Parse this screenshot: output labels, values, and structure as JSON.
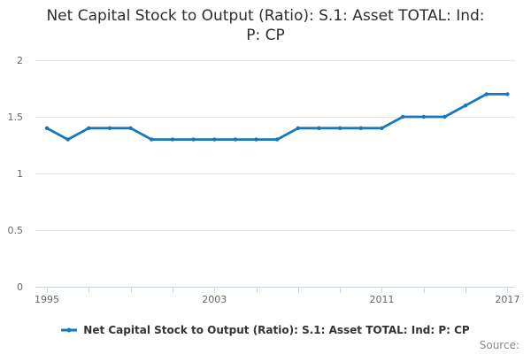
{
  "page": {
    "title_lines": [
      "Net Capital Stock to Output (Ratio): S.1: Asset TOTAL: Ind:",
      "P: CP"
    ]
  },
  "chart_data": {
    "type": "line",
    "title": "Net Capital Stock to Output (Ratio): S.1: Asset TOTAL: Ind: P: CP",
    "x": [
      1995,
      1996,
      1997,
      1998,
      1999,
      2000,
      2001,
      2002,
      2003,
      2004,
      2005,
      2006,
      2007,
      2008,
      2009,
      2010,
      2011,
      2012,
      2013,
      2014,
      2015,
      2016,
      2017
    ],
    "series": [
      {
        "name": "Net Capital Stock to Output (Ratio): S.1: Asset TOTAL: Ind: P: CP",
        "values": [
          1.4,
          1.3,
          1.4,
          1.4,
          1.4,
          1.3,
          1.3,
          1.3,
          1.3,
          1.3,
          1.3,
          1.3,
          1.4,
          1.4,
          1.4,
          1.4,
          1.4,
          1.5,
          1.5,
          1.5,
          1.6,
          1.7,
          1.7
        ]
      }
    ],
    "xlabel": "",
    "ylabel": "",
    "ylim": [
      0,
      2
    ],
    "yticks": [
      0,
      0.5,
      1,
      1.5,
      2
    ],
    "xtick_interval_years": 2,
    "xtick_labels": [
      1995,
      2003,
      2011,
      2017
    ],
    "grid": true,
    "legend_position": "bottom-center",
    "marker": "circle"
  },
  "legend": {
    "label": "Net Capital Stock to Output (Ratio): S.1: Asset TOTAL: Ind: P: CP"
  },
  "footer": {
    "source_label": "Source:"
  },
  "colors": {
    "line": "#1478be",
    "grid": "#e6e6e6",
    "axis": "#ccd6eb",
    "axis_text": "#666666",
    "title_text": "#2d2d2d",
    "legend_text": "#333333",
    "source_text": "#8a8a8a"
  }
}
